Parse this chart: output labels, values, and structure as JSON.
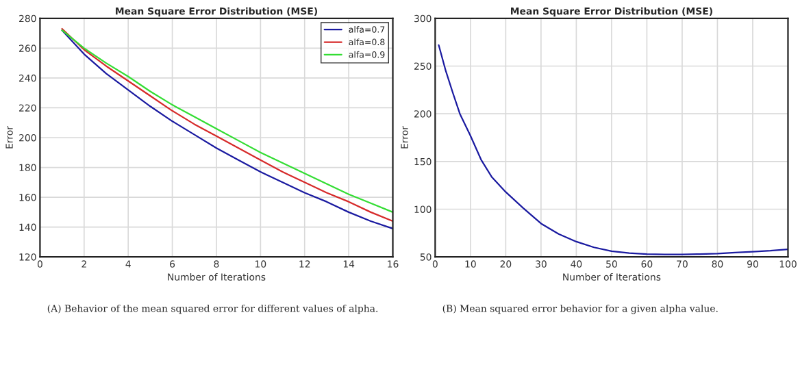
{
  "chart_data": [
    {
      "type": "line",
      "title": "Mean Square Error Distribution (MSE)",
      "xlabel": "Number of Iterations",
      "ylabel": "Error",
      "x": [
        1,
        2,
        3,
        4,
        5,
        6,
        7,
        8,
        9,
        10,
        11,
        12,
        13,
        14,
        15,
        16
      ],
      "series": [
        {
          "name": "alfa=0.7",
          "color": "#1a1aa0",
          "values": [
            272,
            256,
            243,
            232,
            221,
            211,
            202,
            193,
            185,
            177,
            170,
            163,
            157,
            150,
            144,
            139
          ]
        },
        {
          "name": "alfa=0.8",
          "color": "#d62a2a",
          "values": [
            273,
            259,
            248,
            238,
            228,
            218,
            209,
            201,
            193,
            185,
            177,
            170,
            163,
            157,
            150,
            144
          ]
        },
        {
          "name": "alfa=0.9",
          "color": "#33dd33",
          "values": [
            272,
            260,
            250,
            241,
            231,
            222,
            214,
            206,
            198,
            190,
            183,
            176,
            169,
            162,
            156,
            150
          ]
        }
      ],
      "xlim": [
        0,
        16
      ],
      "xticks": [
        0,
        2,
        4,
        6,
        8,
        10,
        12,
        14,
        16
      ],
      "ylim": [
        120,
        280
      ],
      "yticks": [
        120,
        140,
        160,
        180,
        200,
        220,
        240,
        260,
        280
      ],
      "grid": true,
      "legend": "top right",
      "annotations": [
        "(A) Behavior of the mean squared error for different values of alpha."
      ]
    },
    {
      "type": "line",
      "title": "Mean Square Error Distribution (MSE)",
      "xlabel": "Number of Iterations",
      "ylabel": "Error",
      "x": [
        1,
        3,
        5,
        7,
        10,
        13,
        16,
        20,
        25,
        30,
        35,
        40,
        45,
        50,
        55,
        60,
        65,
        70,
        75,
        80,
        85,
        90,
        95,
        100
      ],
      "series": [
        {
          "color": "#1a1aa0",
          "values": [
            272,
            245,
            222,
            200,
            177,
            152,
            134,
            118,
            101,
            85,
            74,
            66,
            60,
            56,
            54,
            53,
            52.5,
            52.5,
            53,
            53.5,
            54.5,
            55.5,
            56.5,
            58
          ]
        }
      ],
      "xlim": [
        0,
        100
      ],
      "xticks": [
        0,
        10,
        20,
        30,
        40,
        50,
        60,
        70,
        80,
        90,
        100
      ],
      "ylim": [
        50,
        300
      ],
      "yticks": [
        50,
        100,
        150,
        200,
        250,
        300
      ],
      "grid": true,
      "annotations": [
        "(B) Mean squared error behavior for a given alpha value."
      ]
    }
  ]
}
